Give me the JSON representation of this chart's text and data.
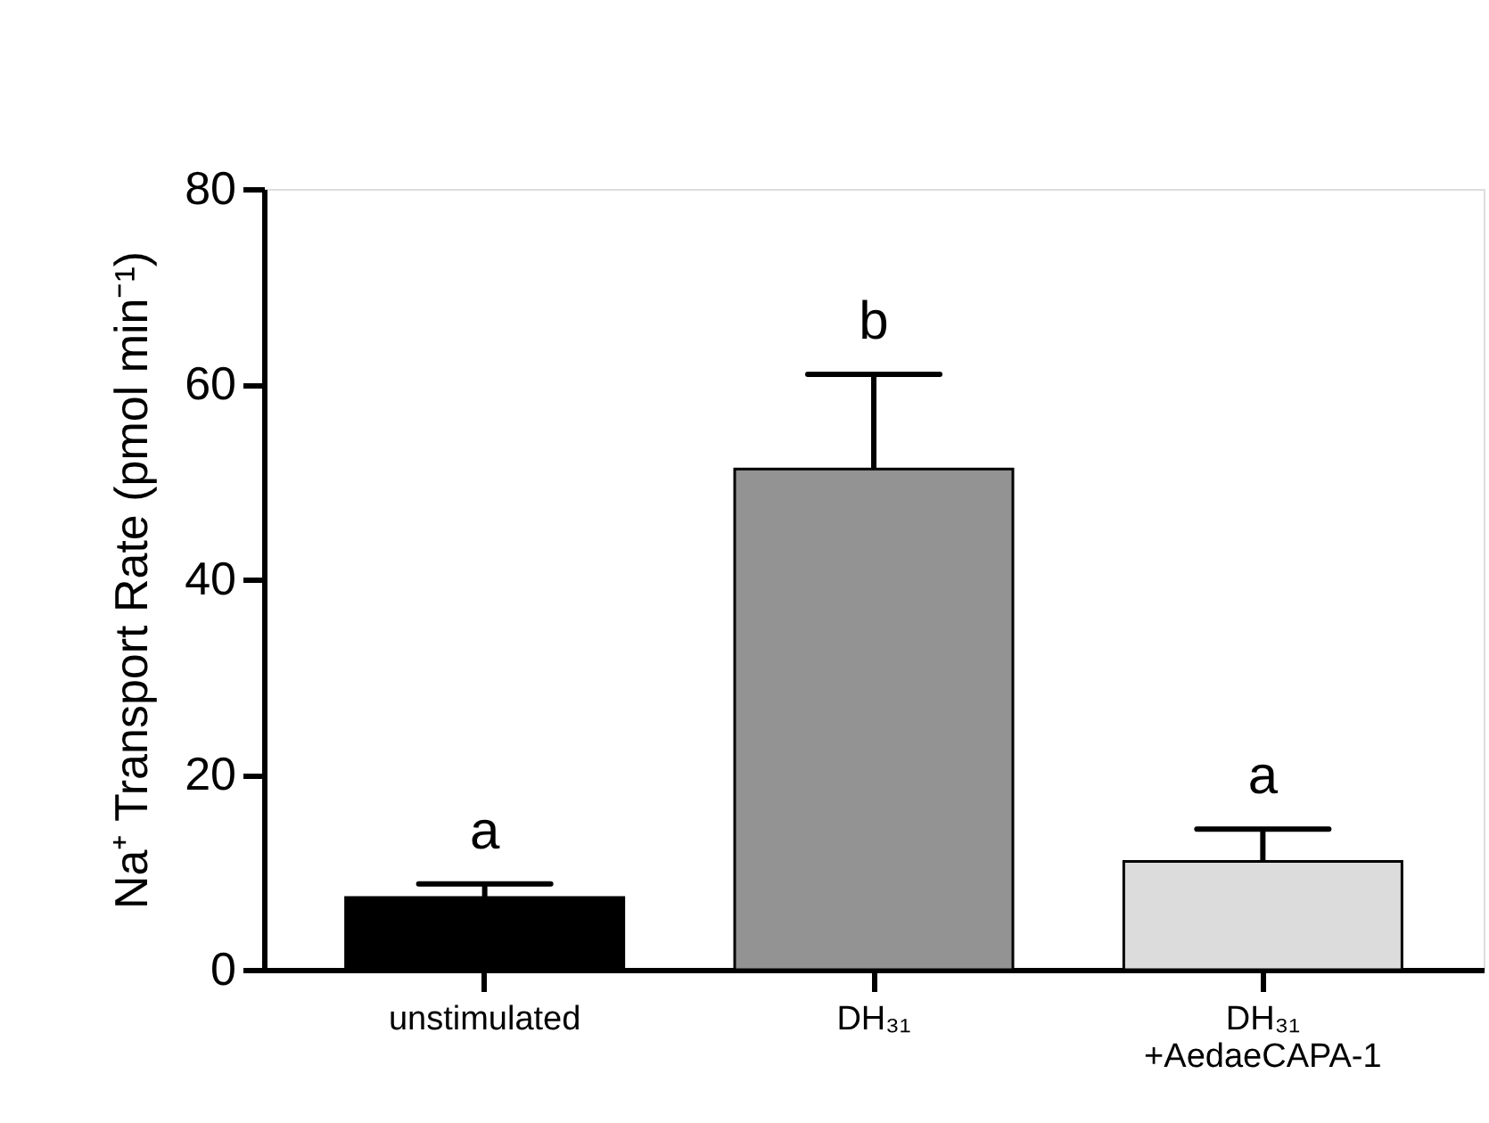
{
  "chart_data": {
    "type": "bar",
    "categories": [
      "unstimulated",
      "DH₃₁",
      "DH₃₁\n+AedaeCAPA-1"
    ],
    "values": [
      7.4,
      51.3,
      11.1
    ],
    "colors": [
      "#000000",
      "#939393",
      "#dcdcdc"
    ],
    "errors": [
      [
        7.4,
        8.8
      ],
      [
        51.3,
        61.0
      ],
      [
        11.1,
        14.4
      ]
    ],
    "ylabel": "Na⁺ Transport Rate (pmol min⁻¹)",
    "ylim": [
      0,
      80
    ],
    "yticks": [
      0,
      20,
      40,
      60,
      80
    ],
    "annotations": [
      "a",
      "b",
      "a"
    ],
    "grid": false
  }
}
